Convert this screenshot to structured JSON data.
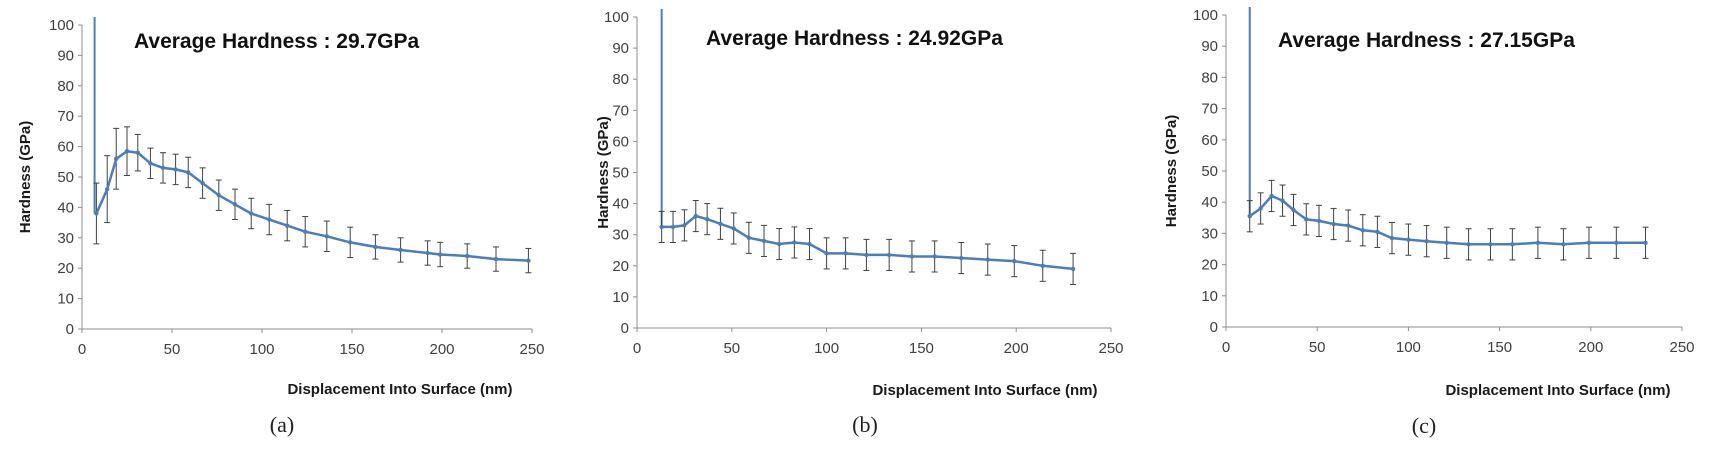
{
  "series_color": "#4a7ebb",
  "error_color": "#404040",
  "chart_data": [
    {
      "type": "line",
      "annotation": "Average Hardness : 29.7GPa",
      "xlabel": "Displacement Into Surface (nm)",
      "ylabel": "Hardness (GPa)",
      "caption": "(a)",
      "xlim": [
        0,
        250
      ],
      "ylim": [
        0,
        100
      ],
      "xticks": [
        0,
        50,
        100,
        150,
        200,
        250
      ],
      "yticks": [
        0,
        10,
        20,
        30,
        40,
        50,
        60,
        70,
        80,
        90,
        100
      ],
      "spike_x": 7,
      "x": [
        8,
        14,
        19,
        25,
        31,
        38,
        45,
        52,
        59,
        67,
        76,
        85,
        94,
        104,
        114,
        124,
        136,
        149,
        163,
        177,
        192,
        199,
        214,
        230,
        248
      ],
      "y": [
        38,
        46,
        56,
        58.5,
        58,
        54.5,
        53,
        52.5,
        51.5,
        48,
        44,
        41,
        38,
        36,
        34,
        32,
        30.5,
        28.5,
        27,
        26,
        25,
        24.5,
        24,
        23,
        22.5
      ],
      "error": [
        10,
        11,
        10,
        8,
        6,
        5,
        5,
        5,
        5,
        5,
        5,
        5,
        5,
        5,
        5,
        5,
        5,
        5,
        4,
        4,
        4,
        4,
        4,
        4,
        4
      ]
    },
    {
      "type": "line",
      "annotation": "Average Hardness : 24.92GPa",
      "xlabel": "Displacement Into Surface (nm)",
      "ylabel": "Hardness (GPa)",
      "caption": "(b)",
      "xlim": [
        0,
        250
      ],
      "ylim": [
        0,
        100
      ],
      "xticks": [
        0,
        50,
        100,
        150,
        200,
        250
      ],
      "yticks": [
        0,
        10,
        20,
        30,
        40,
        50,
        60,
        70,
        80,
        90,
        100
      ],
      "spike_x": 13,
      "x": [
        13,
        19,
        25,
        31,
        37,
        44,
        51,
        59,
        67,
        75,
        83,
        91,
        100,
        110,
        121,
        133,
        145,
        157,
        171,
        185,
        199,
        214,
        230
      ],
      "y": [
        32.5,
        32.5,
        33,
        36,
        35,
        33.5,
        32,
        29,
        28,
        27,
        27.5,
        27,
        24,
        24,
        23.5,
        23.5,
        23,
        23,
        22.5,
        22,
        21.5,
        20,
        19
      ],
      "error": [
        5,
        5,
        5,
        5,
        5,
        5,
        5,
        5,
        5,
        5,
        5,
        5,
        5,
        5,
        5,
        5,
        5,
        5,
        5,
        5,
        5,
        5,
        5
      ]
    },
    {
      "type": "line",
      "annotation": "Average Hardness : 27.15GPa",
      "xlabel": "Displacement Into Surface (nm)",
      "ylabel": "Hardness (GPa)",
      "caption": "(c)",
      "xlim": [
        0,
        250
      ],
      "ylim": [
        0,
        100
      ],
      "xticks": [
        0,
        50,
        100,
        150,
        200,
        250
      ],
      "yticks": [
        0,
        10,
        20,
        30,
        40,
        50,
        60,
        70,
        80,
        90,
        100
      ],
      "spike_x": 13,
      "x": [
        13,
        19,
        25,
        31,
        37,
        44,
        51,
        59,
        67,
        75,
        83,
        91,
        100,
        110,
        121,
        133,
        145,
        157,
        171,
        185,
        199,
        214,
        230
      ],
      "y": [
        35.5,
        38,
        42,
        40.5,
        37.5,
        34.5,
        34,
        33,
        32.5,
        31,
        30.5,
        28.5,
        28,
        27.5,
        27,
        26.5,
        26.5,
        26.5,
        27,
        26.5,
        27,
        27,
        27
      ],
      "error": [
        5,
        5,
        5,
        5,
        5,
        5,
        5,
        5,
        5,
        5,
        5,
        5,
        5,
        5,
        5,
        5,
        5,
        5,
        5,
        5,
        5,
        5,
        5
      ]
    }
  ]
}
